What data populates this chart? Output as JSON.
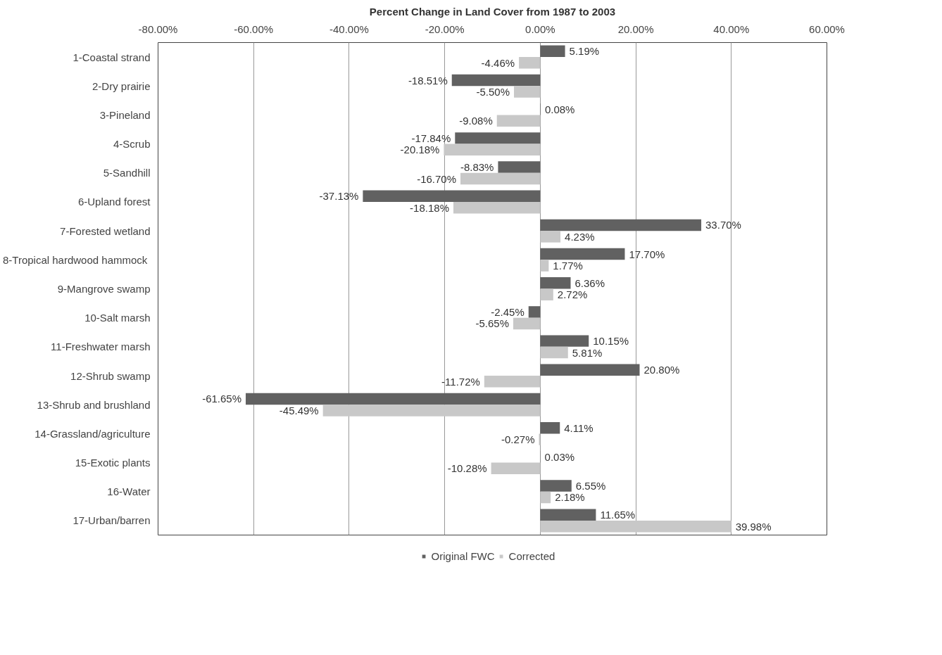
{
  "chart_data": {
    "type": "bar",
    "orientation": "horizontal",
    "title": "Percent Change in Land Cover from 1987 to 2003",
    "categories": [
      "1-Coastal strand",
      "2-Dry prairie",
      "3-Pineland",
      "4-Scrub",
      "5-Sandhill",
      "6-Upland forest",
      "7-Forested wetland",
      "8-Tropical hardwood  hammock",
      "9-Mangrove swamp",
      "10-Salt marsh",
      "11-Freshwater marsh",
      "12-Shrub swamp",
      "13-Shrub and brushland",
      "14-Grassland/agriculture",
      "15-Exotic plants",
      "16-Water",
      "17-Urban/barren"
    ],
    "series": [
      {
        "name": "Original FWC",
        "color": "#616161",
        "values": [
          5.19,
          -18.51,
          0.08,
          -17.84,
          -8.83,
          -37.13,
          33.7,
          17.7,
          6.36,
          -2.45,
          10.15,
          20.8,
          -61.65,
          4.11,
          0.03,
          6.55,
          11.65
        ],
        "value_labels": [
          "5.19%",
          "-18.51%",
          "0.08%",
          "-17.84%",
          "-8.83%",
          "-37.13%",
          "33.70%",
          "17.70%",
          "6.36%",
          "-2.45%",
          "10.15%",
          "20.80%",
          "-61.65%",
          "4.11%",
          "0.03%",
          "6.55%",
          "11.65%"
        ]
      },
      {
        "name": "Corrected",
        "color": "#c8c8c8",
        "values": [
          -4.46,
          -5.5,
          -9.08,
          -20.18,
          -16.7,
          -18.18,
          4.23,
          1.77,
          2.72,
          -5.65,
          5.81,
          -11.72,
          -45.49,
          -0.27,
          -10.28,
          2.18,
          39.98
        ],
        "value_labels": [
          "-4.46%",
          "-5.50%",
          "-9.08%",
          "-20.18%",
          "-16.70%",
          "-18.18%",
          "4.23%",
          "1.77%",
          "2.72%",
          "-5.65%",
          "5.81%",
          "-11.72%",
          "-45.49%",
          "-0.27%",
          "-10.28%",
          "2.18%",
          "39.98%"
        ]
      }
    ],
    "xlim": [
      -80,
      60
    ],
    "xticks": [
      {
        "value": -80,
        "label": "-80.00%"
      },
      {
        "value": -60,
        "label": "-60.00%"
      },
      {
        "value": -40,
        "label": "-40.00%"
      },
      {
        "value": -20,
        "label": "-20.00%"
      },
      {
        "value": 0,
        "label": "0.00%"
      },
      {
        "value": 20,
        "label": "20.00%"
      },
      {
        "value": 40,
        "label": "40.00%"
      },
      {
        "value": 60,
        "label": "60.00%"
      }
    ],
    "grid": "x",
    "legend": "bottom"
  }
}
